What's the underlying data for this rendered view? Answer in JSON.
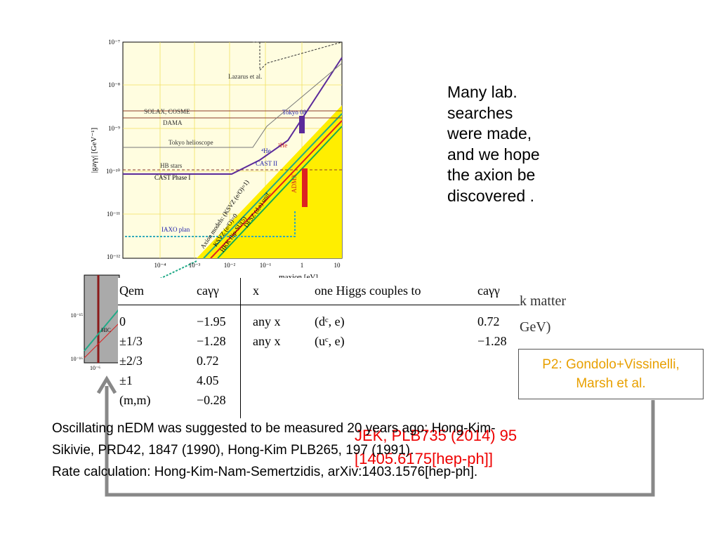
{
  "plot": {
    "y_axis_label": "|gaγγ| [GeV⁻¹]",
    "x_axis_label": "maxion [eV]",
    "yticks": [
      "10⁻⁷",
      "10⁻⁸",
      "10⁻⁹",
      "10⁻¹⁰",
      "10⁻¹¹",
      "10⁻¹²"
    ],
    "xticks": [
      "10⁻⁴",
      "10⁻³",
      "10⁻²",
      "10⁻¹",
      "1",
      "10"
    ],
    "labels": [
      "Lazarus et al.",
      "SOLAX, COSME",
      "DAMA",
      "Tokyo helioscope",
      "HB stars",
      "CAST Phase I",
      "Tokyo 08",
      "³He",
      "⁴He",
      "CAST II",
      "IAXO plan",
      "Axion models: (KSVZ (e/O)=1)",
      "KSVZ (e/O)=0",
      "HKK flip-SU(5)",
      "DFSZ (d,e) unif.",
      "ADMX"
    ]
  },
  "inset": {
    "yticks": [
      "10⁻¹⁵",
      "10⁻¹⁶"
    ],
    "xtick": "10⁻⁶",
    "label": "HIC"
  },
  "table": {
    "header": [
      "Qem",
      "caγγ",
      "x",
      "one Higgs couples to",
      "caγγ"
    ],
    "rows": [
      [
        "0",
        "−1.95",
        "any x",
        "(dᶜ, e)",
        "0.72"
      ],
      [
        "±1/3",
        "−1.28",
        "any x",
        "(uᶜ, e)",
        "−1.28"
      ],
      [
        "±2/3",
        "0.72"
      ],
      [
        "±1",
        "4.05"
      ],
      [
        "(m,m)",
        "−0.28"
      ]
    ]
  },
  "behind": [
    "k matter",
    "GeV)"
  ],
  "side_text": [
    "Many lab.",
    "searches",
    "were made,",
    "and we hope",
    "the axion be",
    "discovered ."
  ],
  "ref_box": [
    "P2: Gondolo+Vissinelli,",
    "Marsh et al."
  ],
  "red_ref": [
    "JEK, PLB735 (2014) 95",
    "[1405.6175[hep-ph]]"
  ],
  "bottom_text": [
    "Oscillating nEDM was suggested to be measured 20 years ago: Hong-Kim-",
    "Sikivie, PRD42, 1847 (1990), Hong-Kim PLB265, 197 (1991).",
    "Rate calculation: Hong-Kim-Nam-Semertzidis, arXiv:1403.1576[hep-ph]."
  ]
}
